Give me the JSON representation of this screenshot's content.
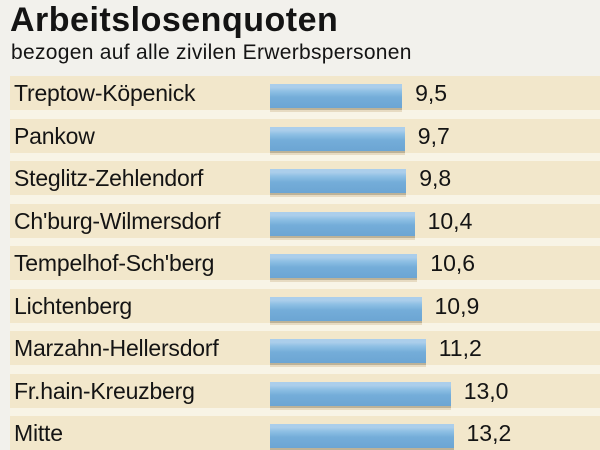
{
  "chart_data": {
    "type": "bar",
    "orientation": "horizontal",
    "title": "Arbeitslosenquoten",
    "subtitle": "bezogen auf alle zivilen Erwerbspersonen",
    "categories": [
      "Treptow-Köpenick",
      "Pankow",
      "Steglitz-Zehlendorf",
      "Ch'burg-Wilmersdorf",
      "Tempelhof-Sch'berg",
      "Lichtenberg",
      "Marzahn-Hellersdorf",
      "Fr.hain-Kreuzberg",
      "Mitte"
    ],
    "values": [
      9.5,
      9.7,
      9.8,
      10.4,
      10.6,
      10.9,
      11.2,
      13.0,
      13.2
    ],
    "values_display": [
      "9,5",
      "9,7",
      "9,8",
      "10,4",
      "10,6",
      "10,9",
      "11,2",
      "13,0",
      "13,2"
    ],
    "xlim": [
      0,
      14.5
    ],
    "grid": false,
    "legend": false,
    "value_labels_position": "right-of-bar"
  },
  "colors": {
    "background": "#f2f1ec",
    "text": "#141414",
    "bar": "#74add9",
    "bar_highlight": "#abceeb",
    "row_band": "#f2e7cb",
    "row_separator": "#f8f4e6"
  }
}
